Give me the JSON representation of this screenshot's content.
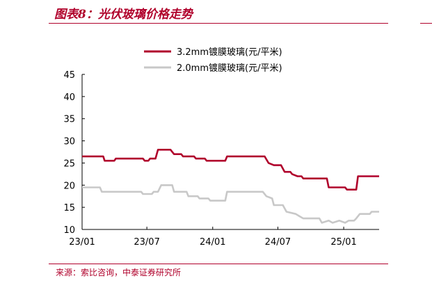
{
  "header": {
    "title": "图表8：光伏玻璃价格走势"
  },
  "footer": {
    "source": "来源：索比咨询，中泰证券研究所"
  },
  "chart_data": {
    "type": "line",
    "title": "图表8：光伏玻璃价格走势",
    "xlabel": "",
    "ylabel": "",
    "ylim": [
      10,
      45
    ],
    "y_ticks": [
      10,
      15,
      20,
      25,
      30,
      35,
      40,
      45
    ],
    "x_ticks": [
      "23/01",
      "23/07",
      "24/01",
      "24/07",
      "25/01"
    ],
    "x_range": [
      "2023-01",
      "2025-04"
    ],
    "legend_placement": "top-center",
    "grid": false,
    "series": [
      {
        "name": "3.2mm镀膜玻璃(元/平米)",
        "color": "#b0002b",
        "points": [
          [
            "2023-01-01",
            26.5
          ],
          [
            "2023-03-01",
            26.5
          ],
          [
            "2023-03-05",
            25.5
          ],
          [
            "2023-04-01",
            25.5
          ],
          [
            "2023-04-05",
            26
          ],
          [
            "2023-06-20",
            26
          ],
          [
            "2023-06-25",
            25.5
          ],
          [
            "2023-07-05",
            25.5
          ],
          [
            "2023-07-10",
            26
          ],
          [
            "2023-07-25",
            26
          ],
          [
            "2023-08-01",
            28
          ],
          [
            "2023-09-05",
            28
          ],
          [
            "2023-09-15",
            27
          ],
          [
            "2023-10-05",
            27
          ],
          [
            "2023-10-10",
            26.5
          ],
          [
            "2023-11-10",
            26.5
          ],
          [
            "2023-11-15",
            26
          ],
          [
            "2023-12-10",
            26
          ],
          [
            "2023-12-15",
            25.5
          ],
          [
            "2024-02-05",
            25.5
          ],
          [
            "2024-02-10",
            26.5
          ],
          [
            "2024-05-25",
            26.5
          ],
          [
            "2024-06-05",
            25
          ],
          [
            "2024-06-20",
            24.5
          ],
          [
            "2024-07-10",
            24.5
          ],
          [
            "2024-07-20",
            23
          ],
          [
            "2024-08-05",
            23
          ],
          [
            "2024-08-10",
            22.5
          ],
          [
            "2024-08-25",
            22
          ],
          [
            "2024-09-05",
            22
          ],
          [
            "2024-09-10",
            21.5
          ],
          [
            "2024-11-15",
            21.5
          ],
          [
            "2024-11-20",
            19.5
          ],
          [
            "2025-01-05",
            19.5
          ],
          [
            "2025-01-10",
            19
          ],
          [
            "2025-02-05",
            19
          ],
          [
            "2025-02-10",
            22
          ],
          [
            "2025-04-10",
            22
          ]
        ]
      },
      {
        "name": "2.0mm镀膜玻璃(元/平米)",
        "color": "#c8c8c8",
        "points": [
          [
            "2023-01-01",
            19.5
          ],
          [
            "2023-02-20",
            19.5
          ],
          [
            "2023-02-25",
            18.5
          ],
          [
            "2023-06-15",
            18.5
          ],
          [
            "2023-06-20",
            18
          ],
          [
            "2023-07-15",
            18
          ],
          [
            "2023-07-20",
            18.5
          ],
          [
            "2023-08-01",
            18.5
          ],
          [
            "2023-08-10",
            20
          ],
          [
            "2023-09-10",
            20
          ],
          [
            "2023-09-15",
            18.5
          ],
          [
            "2023-10-20",
            18.5
          ],
          [
            "2023-10-25",
            17.5
          ],
          [
            "2023-11-20",
            17.5
          ],
          [
            "2023-11-25",
            17
          ],
          [
            "2023-12-20",
            17
          ],
          [
            "2023-12-25",
            16.5
          ],
          [
            "2024-02-05",
            16.5
          ],
          [
            "2024-02-10",
            18.5
          ],
          [
            "2024-05-20",
            18.5
          ],
          [
            "2024-05-30",
            17.5
          ],
          [
            "2024-06-15",
            17
          ],
          [
            "2024-06-20",
            15.5
          ],
          [
            "2024-07-15",
            15.5
          ],
          [
            "2024-07-25",
            14
          ],
          [
            "2024-08-20",
            13.5
          ],
          [
            "2024-08-30",
            13
          ],
          [
            "2024-09-10",
            12.5
          ],
          [
            "2024-10-25",
            12.5
          ],
          [
            "2024-11-01",
            11.5
          ],
          [
            "2024-11-20",
            12
          ],
          [
            "2024-12-01",
            11.5
          ],
          [
            "2024-12-20",
            12
          ],
          [
            "2025-01-05",
            11.5
          ],
          [
            "2025-01-15",
            12
          ],
          [
            "2025-01-30",
            12
          ],
          [
            "2025-02-05",
            12.5
          ],
          [
            "2025-02-15",
            13.5
          ],
          [
            "2025-03-15",
            13.5
          ],
          [
            "2025-03-20",
            14
          ],
          [
            "2025-04-10",
            14
          ]
        ]
      }
    ]
  }
}
